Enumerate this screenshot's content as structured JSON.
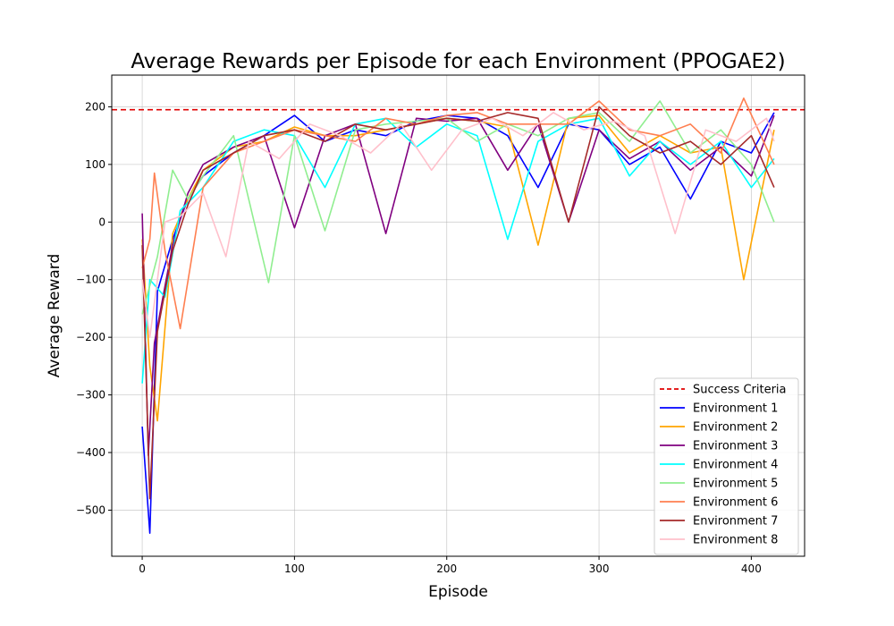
{
  "chart_data": {
    "type": "line",
    "title": "Average Rewards per Episode for each Environment (PPOGAE2)",
    "xlabel": "Episode",
    "ylabel": "Average Reward",
    "xlim": [
      -20,
      435
    ],
    "ylim": [
      -580,
      255
    ],
    "xticks": [
      0,
      100,
      200,
      300,
      400
    ],
    "yticks": [
      -500,
      -400,
      -300,
      -200,
      -100,
      0,
      100,
      200
    ],
    "grid": true,
    "legend_position": "lower-right",
    "reference_line": {
      "name": "Success Criteria",
      "y": 195,
      "color": "#e00000",
      "style": "dashed"
    },
    "series": [
      {
        "name": "Environment 1",
        "color": "#0000ff",
        "x": [
          0,
          5,
          10,
          20,
          30,
          40,
          60,
          80,
          100,
          120,
          140,
          160,
          180,
          200,
          220,
          240,
          260,
          280,
          300,
          320,
          340,
          360,
          380,
          400,
          415
        ],
        "values": [
          -355,
          -540,
          -120,
          -30,
          40,
          80,
          120,
          150,
          185,
          140,
          160,
          150,
          175,
          185,
          180,
          150,
          60,
          170,
          160,
          100,
          130,
          40,
          140,
          120,
          190
        ]
      },
      {
        "name": "Environment 2",
        "color": "#ffa500",
        "x": [
          0,
          5,
          10,
          20,
          30,
          40,
          60,
          80,
          100,
          120,
          140,
          160,
          180,
          200,
          220,
          240,
          260,
          280,
          300,
          320,
          340,
          360,
          380,
          395,
          415
        ],
        "values": [
          -30,
          -250,
          -345,
          -20,
          40,
          90,
          130,
          140,
          165,
          150,
          150,
          160,
          170,
          180,
          175,
          165,
          -40,
          180,
          185,
          120,
          150,
          120,
          130,
          -100,
          160
        ]
      },
      {
        "name": "Environment 3",
        "color": "#800080",
        "x": [
          0,
          4,
          8,
          20,
          30,
          40,
          60,
          80,
          100,
          120,
          140,
          160,
          180,
          200,
          220,
          240,
          260,
          280,
          300,
          320,
          340,
          360,
          380,
          400,
          415
        ],
        "values": [
          15,
          -405,
          -210,
          -40,
          50,
          100,
          130,
          150,
          -10,
          150,
          170,
          -20,
          180,
          175,
          180,
          90,
          170,
          0,
          160,
          110,
          140,
          90,
          130,
          80,
          185
        ]
      },
      {
        "name": "Environment 4",
        "color": "#00ffff",
        "x": [
          0,
          5,
          15,
          25,
          40,
          60,
          80,
          100,
          120,
          140,
          160,
          180,
          200,
          220,
          240,
          260,
          280,
          300,
          320,
          340,
          360,
          380,
          400,
          415
        ],
        "values": [
          -280,
          -100,
          -130,
          20,
          60,
          140,
          160,
          150,
          60,
          170,
          180,
          130,
          170,
          150,
          -30,
          140,
          170,
          180,
          80,
          140,
          100,
          140,
          60,
          110
        ]
      },
      {
        "name": "Environment 5",
        "color": "#90ee90",
        "x": [
          0,
          10,
          20,
          30,
          40,
          60,
          83,
          100,
          120,
          140,
          160,
          180,
          200,
          220,
          240,
          260,
          280,
          300,
          320,
          340,
          360,
          380,
          400,
          415
        ],
        "values": [
          -160,
          -60,
          90,
          40,
          80,
          150,
          -105,
          150,
          -15,
          160,
          170,
          175,
          180,
          140,
          170,
          150,
          180,
          190,
          140,
          210,
          120,
          160,
          100,
          0
        ]
      },
      {
        "name": "Environment 6",
        "color": "#ff7f50",
        "x": [
          0,
          5,
          8,
          15,
          25,
          40,
          60,
          80,
          100,
          120,
          140,
          160,
          180,
          200,
          220,
          240,
          260,
          280,
          300,
          320,
          340,
          360,
          380,
          395,
          415
        ],
        "values": [
          -80,
          -30,
          85,
          -50,
          -185,
          60,
          120,
          140,
          160,
          150,
          140,
          180,
          170,
          185,
          190,
          170,
          170,
          170,
          210,
          160,
          150,
          170,
          120,
          215,
          100
        ]
      },
      {
        "name": "Environment 7",
        "color": "#a52a2a",
        "x": [
          0,
          5,
          10,
          20,
          30,
          40,
          60,
          80,
          100,
          120,
          140,
          160,
          180,
          200,
          220,
          240,
          260,
          280,
          300,
          320,
          340,
          360,
          380,
          400,
          415
        ],
        "values": [
          -40,
          -480,
          -190,
          -50,
          30,
          90,
          120,
          150,
          160,
          140,
          170,
          160,
          170,
          180,
          175,
          190,
          180,
          0,
          200,
          150,
          120,
          140,
          100,
          150,
          60
        ]
      },
      {
        "name": "Environment 8",
        "color": "#ffc0cb",
        "x": [
          0,
          5,
          15,
          25,
          40,
          55,
          70,
          90,
          110,
          130,
          150,
          170,
          190,
          210,
          230,
          250,
          270,
          290,
          310,
          330,
          350,
          370,
          390,
          410,
          415
        ],
        "values": [
          -100,
          -200,
          0,
          10,
          50,
          -60,
          140,
          110,
          170,
          150,
          120,
          170,
          90,
          160,
          180,
          150,
          190,
          160,
          175,
          150,
          -20,
          160,
          140,
          180,
          140
        ]
      }
    ]
  }
}
